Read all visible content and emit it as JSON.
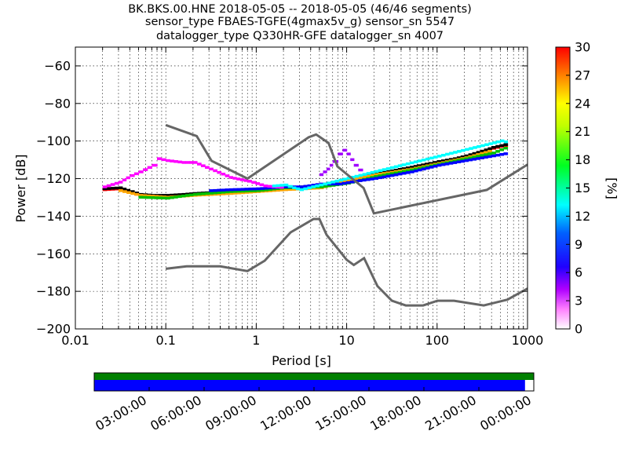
{
  "title_lines": [
    "BK.BKS.00.HNE   2018-05-05 -- 2018-05-05  (46/46 segments)",
    "sensor_type FBAES-TGFE(4gmax5v_g) sensor_sn 5547",
    "datalogger_type Q330HR-GFE datalogger_sn 4007"
  ],
  "chart_data": {
    "type": "heatmap",
    "xlabel": "Period [s]",
    "ylabel": "Power [dB]",
    "xscale": "log",
    "xlim": [
      0.01,
      1000
    ],
    "ylim": [
      -200,
      -50
    ],
    "grid": true,
    "x_ticks": [
      {
        "value": 0.01,
        "label": "0.01"
      },
      {
        "value": 0.1,
        "label": "0.1"
      },
      {
        "value": 1,
        "label": "1"
      },
      {
        "value": 10,
        "label": "10"
      },
      {
        "value": 100,
        "label": "100"
      },
      {
        "value": 1000,
        "label": "1000"
      }
    ],
    "y_ticks": [
      {
        "value": -60,
        "label": "−60"
      },
      {
        "value": -80,
        "label": "−80"
      },
      {
        "value": -100,
        "label": "−100"
      },
      {
        "value": -120,
        "label": "−120"
      },
      {
        "value": -140,
        "label": "−140"
      },
      {
        "value": -160,
        "label": "−160"
      },
      {
        "value": -180,
        "label": "−180"
      },
      {
        "value": -200,
        "label": "−200"
      }
    ],
    "noise_models": [
      {
        "x": [
          0.1,
          0.22,
          0.32,
          0.8,
          3.8,
          4.6,
          6.3,
          7.9,
          15.4,
          20,
          354.8,
          1000
        ],
        "y": [
          -91.5,
          -97.4,
          -110.5,
          -120.0,
          -98.0,
          -96.5,
          -101.0,
          -113.5,
          -125.0,
          -138.5,
          -126.0,
          -112.5
        ]
      },
      {
        "x": [
          0.1,
          0.17,
          0.4,
          0.8,
          1.24,
          2.4,
          4.3,
          5.0,
          6.0,
          10.0,
          12.0,
          15.6,
          21.9,
          31.6,
          45.0,
          70.0,
          101.0,
          154.0,
          328.0,
          600.0,
          1000.0
        ],
        "y": [
          -168.0,
          -166.7,
          -166.7,
          -169.2,
          -163.7,
          -148.6,
          -141.5,
          -141.5,
          -149.9,
          -163.2,
          -166.0,
          -162.3,
          -177.2,
          -185.0,
          -187.5,
          -187.5,
          -185.0,
          -185.0,
          -187.5,
          -184.4,
          -178.5
        ]
      }
    ],
    "density_traces": [
      {
        "color": "#ff0000",
        "x": [
          0.02,
          0.03,
          0.04,
          0.05,
          0.07,
          0.1,
          0.15,
          0.2,
          0.3,
          0.5,
          0.8,
          1.2,
          2,
          3,
          5,
          8,
          12,
          20,
          30,
          50,
          80,
          100,
          150,
          200,
          300,
          400,
          600
        ],
        "y": [
          -126,
          -125.5,
          -127.5,
          -129,
          -129.5,
          -129.5,
          -129,
          -128.5,
          -128,
          -127.5,
          -126.5,
          -126,
          -125.5,
          -125,
          -124,
          -122,
          -120,
          -118,
          -116.5,
          -114.5,
          -112.5,
          -111.5,
          -110,
          -108.5,
          -106,
          -104,
          -102
        ]
      },
      {
        "color": "#000000",
        "x": [
          0.02,
          0.03,
          0.04,
          0.05,
          0.07,
          0.1,
          0.15,
          0.2,
          0.3,
          0.5,
          0.8,
          1.2,
          2,
          3,
          5,
          8,
          12,
          20,
          30,
          50,
          80,
          100,
          150,
          200,
          300,
          400,
          600
        ],
        "y": [
          -125.5,
          -125,
          -127,
          -128.5,
          -129,
          -129,
          -128.5,
          -128,
          -127.5,
          -127,
          -126,
          -125.5,
          -125,
          -124.5,
          -123.5,
          -121.5,
          -119.5,
          -117.5,
          -116,
          -114,
          -112,
          -111,
          -109.5,
          -108,
          -105.5,
          -103.5,
          -101.5
        ]
      },
      {
        "color": "#ffa500",
        "x": [
          0.03,
          0.05,
          0.1,
          0.2,
          0.5,
          1,
          2,
          5,
          10,
          20,
          50,
          100,
          200,
          400
        ],
        "y": [
          -126.5,
          -129,
          -130,
          -129,
          -128,
          -127,
          -126,
          -125,
          -121,
          -118,
          -115,
          -112,
          -109,
          -105
        ]
      },
      {
        "color": "#00c000",
        "x": [
          0.05,
          0.1,
          0.2,
          0.5,
          1,
          2,
          5,
          10,
          20,
          50,
          100,
          200,
          400,
          600
        ],
        "y": [
          -130,
          -130.5,
          -128.5,
          -127,
          -126.5,
          -125,
          -124.5,
          -122.5,
          -119,
          -115.5,
          -112.5,
          -109.5,
          -106.5,
          -103
        ]
      },
      {
        "color": "#0000ff",
        "x": [
          0.3,
          0.5,
          1,
          2,
          3,
          5,
          8,
          12,
          20,
          50,
          100,
          200,
          400,
          600
        ],
        "y": [
          -126.5,
          -126,
          -125.5,
          -124.5,
          -124.5,
          -123,
          -123,
          -121.5,
          -120,
          -116.5,
          -113,
          -110.5,
          -108,
          -106.5
        ]
      },
      {
        "color": "#ff00ff",
        "x": [
          0.02,
          0.03,
          0.04,
          0.05,
          0.07,
          0.08,
          0.1,
          0.15,
          0.2,
          0.3,
          0.5,
          0.8,
          1.2,
          2
        ],
        "y": [
          -124.5,
          -122,
          -118.5,
          -116.5,
          -113,
          -109.5,
          -110.5,
          -111.5,
          -111.5,
          -115,
          -119.5,
          -121.5,
          -124,
          -125
        ]
      },
      {
        "color": "#00ffff",
        "x": [
          1.5,
          2,
          2.5,
          3,
          500,
          600
        ],
        "y": [
          -124,
          -123.5,
          -125,
          -126,
          -100,
          -101
        ]
      },
      {
        "color": "#a000ff",
        "x": [
          5,
          6,
          7,
          8,
          9,
          10,
          12,
          15
        ],
        "y": [
          -118,
          -115,
          -111,
          -107,
          -105,
          -107,
          -113,
          -118
        ]
      }
    ],
    "colorbar": {
      "label": "[%]",
      "range": [
        0,
        30
      ],
      "ticks": [
        "0",
        "3",
        "6",
        "9",
        "12",
        "15",
        "18",
        "21",
        "24",
        "27",
        "30"
      ]
    }
  },
  "coverage": {
    "time_labels": [
      "03:00:00",
      "06:00:00",
      "09:00:00",
      "12:00:00",
      "15:00:00",
      "18:00:00",
      "21:00:00",
      "00:00:00"
    ],
    "data_fraction": 0.98,
    "data_color": "#0000ff",
    "gap_color": "#ffffff",
    "top_color": "#008000"
  }
}
